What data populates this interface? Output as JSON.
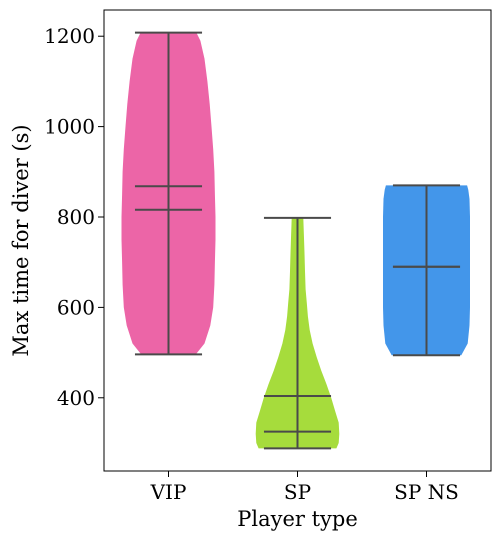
{
  "chart_data": {
    "type": "violin",
    "xlabel": "Player type",
    "ylabel": "Max time for diver (s)",
    "categories": [
      "VIP",
      "SP",
      "SP NS"
    ],
    "ylim": [
      238,
      1258
    ],
    "yticks": [
      400,
      600,
      800,
      1000,
      1200
    ],
    "grid": false,
    "series": [
      {
        "category": "VIP",
        "color": "#ec65a7",
        "min": 496,
        "max": 1208,
        "mean": 868,
        "median": 816,
        "density": [
          [
            496,
            0.47
          ],
          [
            520,
            0.62
          ],
          [
            560,
            0.72
          ],
          [
            600,
            0.77
          ],
          [
            650,
            0.79
          ],
          [
            700,
            0.8
          ],
          [
            750,
            0.81
          ],
          [
            800,
            0.81
          ],
          [
            850,
            0.8
          ],
          [
            900,
            0.79
          ],
          [
            950,
            0.77
          ],
          [
            1000,
            0.74
          ],
          [
            1050,
            0.71
          ],
          [
            1100,
            0.67
          ],
          [
            1150,
            0.62
          ],
          [
            1190,
            0.55
          ],
          [
            1208,
            0.48
          ]
        ]
      },
      {
        "category": "SP",
        "color": "#a6dc3c",
        "min": 288,
        "max": 798,
        "mean": 404,
        "median": 325,
        "density": [
          [
            288,
            0.67
          ],
          [
            300,
            0.71
          ],
          [
            320,
            0.72
          ],
          [
            345,
            0.71
          ],
          [
            370,
            0.65
          ],
          [
            400,
            0.58
          ],
          [
            430,
            0.5
          ],
          [
            460,
            0.41
          ],
          [
            490,
            0.33
          ],
          [
            520,
            0.26
          ],
          [
            550,
            0.21
          ],
          [
            580,
            0.18
          ],
          [
            610,
            0.16
          ],
          [
            640,
            0.14
          ],
          [
            680,
            0.13
          ],
          [
            720,
            0.12
          ],
          [
            760,
            0.11
          ],
          [
            798,
            0.1
          ]
        ]
      },
      {
        "category": "SP NS",
        "color": "#4396ea",
        "min": 494,
        "max": 870,
        "mean": 690,
        "median": 690,
        "density": [
          [
            494,
            0.6
          ],
          [
            520,
            0.71
          ],
          [
            560,
            0.74
          ],
          [
            600,
            0.75
          ],
          [
            650,
            0.75
          ],
          [
            700,
            0.75
          ],
          [
            750,
            0.75
          ],
          [
            800,
            0.75
          ],
          [
            840,
            0.74
          ],
          [
            860,
            0.72
          ],
          [
            870,
            0.7
          ]
        ]
      }
    ]
  }
}
